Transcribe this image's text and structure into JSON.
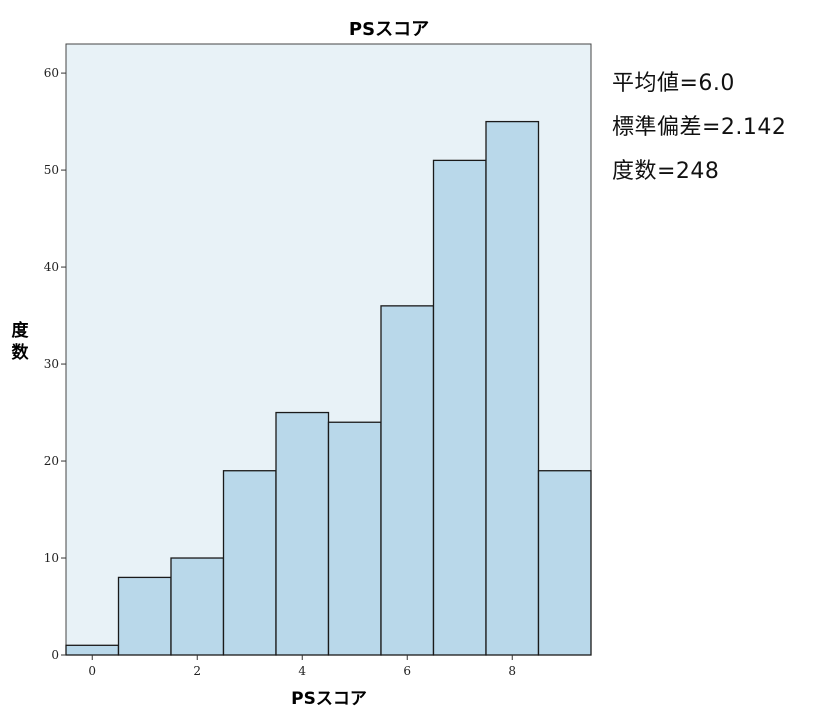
{
  "chart_data": {
    "type": "bar",
    "title": "PSスコア",
    "xlabel": "PSスコア",
    "ylabel": "度数",
    "x": [
      0,
      1,
      2,
      3,
      4,
      5,
      6,
      7,
      8,
      9
    ],
    "values": [
      1,
      8,
      10,
      19,
      25,
      24,
      36,
      51,
      55,
      19
    ],
    "xlim": [
      -0.5,
      9.5
    ],
    "ylim": [
      0,
      63
    ],
    "xticks": [
      0,
      2,
      4,
      6,
      8
    ],
    "yticks": [
      0,
      10,
      20,
      30,
      40,
      50,
      60
    ],
    "grid": false,
    "bar_color": "#b9d8ea",
    "plot_background": "#e8f2f7",
    "stats": {
      "mean_label": "平均値=6.0",
      "sd_label": "標準偏差=2.142",
      "n_label": "度数=248"
    }
  }
}
